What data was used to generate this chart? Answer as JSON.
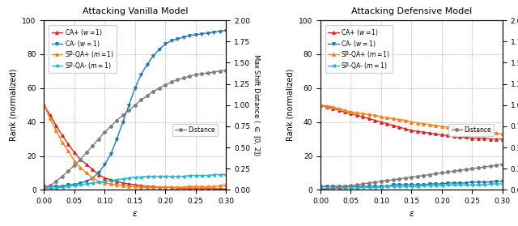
{
  "title_left": "Attacking Vanilla Model",
  "title_right": "Attacking Defensive Model",
  "xlabel": "$\\epsilon$",
  "ylabel_left": "Rank (normalized)",
  "ylabel_right": "Max Shift Distance ( $\\in$ [0, 2])",
  "xlim": [
    0.0,
    0.3
  ],
  "ylim_rank": [
    0,
    100
  ],
  "ylim_dist": [
    0.0,
    2.0
  ],
  "epsilon": [
    0.0,
    0.01,
    0.02,
    0.03,
    0.04,
    0.05,
    0.06,
    0.07,
    0.08,
    0.09,
    0.1,
    0.11,
    0.12,
    0.13,
    0.14,
    0.15,
    0.16,
    0.17,
    0.18,
    0.19,
    0.2,
    0.21,
    0.22,
    0.23,
    0.24,
    0.25,
    0.26,
    0.27,
    0.28,
    0.29,
    0.3
  ],
  "vanilla": {
    "CA_plus": [
      50,
      44,
      38,
      32,
      27,
      22,
      18,
      15,
      12,
      9,
      7,
      6,
      5,
      4,
      3.5,
      3,
      2.5,
      2,
      2,
      1.5,
      1.5,
      1.5,
      1,
      1,
      1,
      1,
      1,
      1,
      1,
      0.5,
      0.5
    ],
    "CA_minus": [
      2,
      2,
      2,
      2,
      3,
      3,
      4,
      5,
      7,
      10,
      15,
      21,
      30,
      40,
      50,
      60,
      68,
      74,
      79,
      83,
      86,
      88,
      89,
      90,
      91,
      91.5,
      92,
      92.5,
      93,
      93.5,
      94
    ],
    "SPQA_plus": [
      50,
      42,
      35,
      28,
      23,
      17,
      13,
      10,
      7,
      5,
      4,
      3.5,
      3,
      2.5,
      2,
      2,
      1.5,
      1.5,
      1.5,
      1.5,
      1.5,
      1.5,
      1.5,
      1.5,
      2,
      2,
      2,
      2,
      2,
      2.5,
      3
    ],
    "SPQA_minus": [
      1,
      1,
      1,
      1.5,
      2,
      2.5,
      3,
      3.5,
      4,
      4.5,
      5,
      5.5,
      6,
      6.5,
      7,
      7.5,
      7.5,
      8,
      8,
      8,
      8,
      8,
      8,
      8,
      8.5,
      8.5,
      8.5,
      8.5,
      9,
      9,
      9
    ],
    "distance": [
      0.0,
      0.05,
      0.1,
      0.16,
      0.22,
      0.29,
      0.36,
      0.44,
      0.52,
      0.6,
      0.68,
      0.75,
      0.82,
      0.88,
      0.94,
      1.0,
      1.06,
      1.11,
      1.16,
      1.2,
      1.24,
      1.27,
      1.3,
      1.32,
      1.34,
      1.36,
      1.37,
      1.38,
      1.39,
      1.4,
      1.41
    ]
  },
  "defensive": {
    "CA_plus": [
      50,
      49,
      48,
      47,
      46,
      45,
      44,
      43,
      42,
      41,
      40,
      39,
      38,
      37,
      36,
      35,
      34.5,
      34,
      33.5,
      33,
      32.5,
      32,
      31.5,
      31,
      31,
      30.5,
      30.5,
      30.5,
      30,
      30,
      30
    ],
    "CA_minus": [
      2,
      2,
      2,
      2,
      2,
      2,
      2,
      2,
      2,
      2,
      2,
      2,
      3,
      3,
      3,
      3,
      3,
      3,
      3.5,
      3.5,
      3.5,
      4,
      4,
      4,
      4,
      4.5,
      4.5,
      4.5,
      4.5,
      5,
      5
    ],
    "SPQA_plus": [
      50,
      49.5,
      49,
      48,
      47,
      46,
      45.5,
      45,
      44.5,
      44,
      43,
      42.5,
      42,
      41.5,
      41,
      40,
      39.5,
      39,
      38.5,
      38,
      37.5,
      37,
      36.5,
      36,
      35.5,
      35,
      35,
      34.5,
      34,
      33.5,
      33
    ],
    "SPQA_minus": [
      1,
      1,
      1,
      1,
      1,
      1,
      1,
      1.5,
      1.5,
      1.5,
      1.5,
      2,
      2,
      2,
      2,
      2,
      2,
      2.5,
      2.5,
      2.5,
      2.5,
      3,
      3,
      3,
      3,
      3,
      3,
      3,
      3.5,
      3.5,
      3.5
    ],
    "distance": [
      0.0,
      0.01,
      0.02,
      0.03,
      0.04,
      0.05,
      0.06,
      0.07,
      0.08,
      0.09,
      0.1,
      0.11,
      0.12,
      0.13,
      0.14,
      0.15,
      0.16,
      0.17,
      0.18,
      0.19,
      0.2,
      0.21,
      0.22,
      0.23,
      0.24,
      0.25,
      0.26,
      0.27,
      0.28,
      0.29,
      0.3
    ]
  },
  "colors": {
    "CA_plus": "#d62728",
    "CA_minus": "#1f77b4",
    "SPQA_plus": "#ff7f0e",
    "SPQA_minus": "#17becf",
    "distance": "#7f7f7f"
  },
  "legend_labels": {
    "CA_plus": "CA+ ($w = 1$)",
    "CA_minus": "CA- ($w = 1$)",
    "SPQA_plus": "SP-QA+ ($m = 1$)",
    "SPQA_minus": "SP-QA- ($m = 1$)",
    "distance": "Distance"
  },
  "marker_CA_plus": "^",
  "marker_CA_minus": "v",
  "marker_SPQA_plus": "^",
  "marker_SPQA_minus": "<",
  "marker_distance": "o",
  "markersize": 2.5,
  "linewidth": 1.0
}
